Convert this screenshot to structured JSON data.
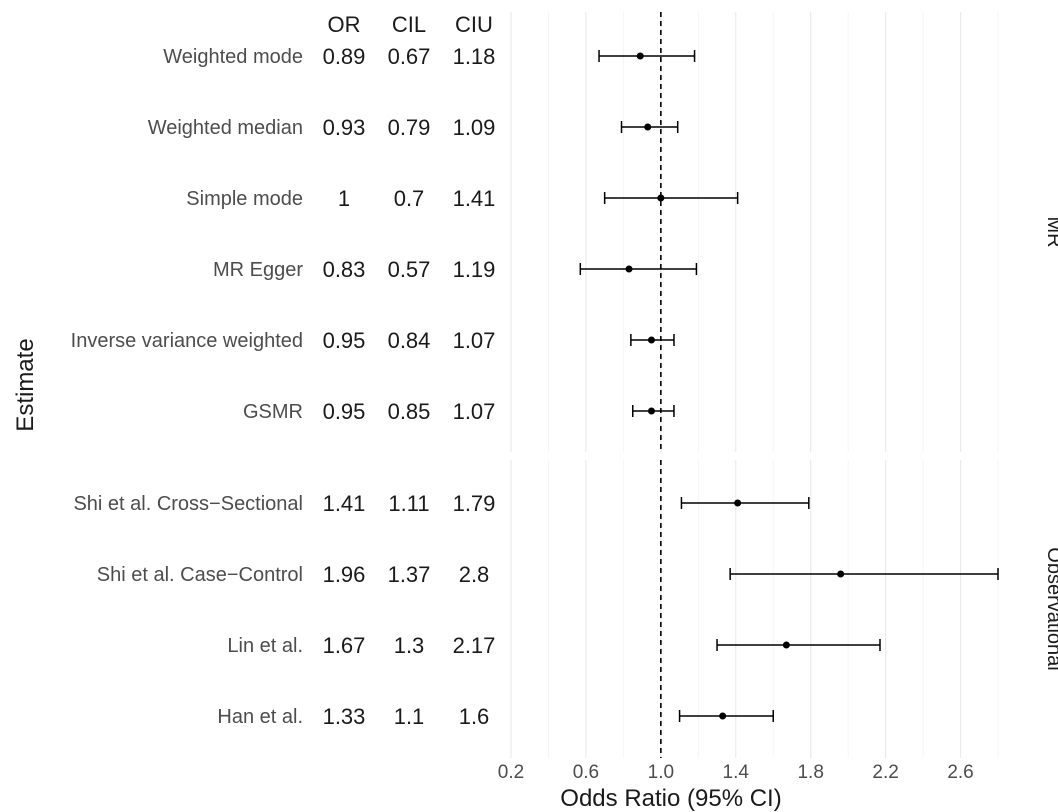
{
  "chart_data": {
    "type": "forest",
    "xlabel": "Odds Ratio (95% CI)",
    "ylabel": "Estimate",
    "xlim": [
      0.2,
      2.8
    ],
    "xticks": [
      "0.2",
      "0.6",
      "1.0",
      "1.4",
      "1.8",
      "2.2",
      "2.6"
    ],
    "reference_line": 1.0,
    "columns": [
      "OR",
      "CIL",
      "CIU"
    ],
    "grid": true,
    "groups": [
      {
        "name": "MR",
        "rows": [
          {
            "label": "Weighted mode",
            "or": 0.89,
            "cil": 0.67,
            "ciu": 1.18,
            "or_text": "0.89",
            "cil_text": "0.67",
            "ciu_text": "1.18"
          },
          {
            "label": "Weighted median",
            "or": 0.93,
            "cil": 0.79,
            "ciu": 1.09,
            "or_text": "0.93",
            "cil_text": "0.79",
            "ciu_text": "1.09"
          },
          {
            "label": "Simple mode",
            "or": 1.0,
            "cil": 0.7,
            "ciu": 1.41,
            "or_text": "1",
            "cil_text": "0.7",
            "ciu_text": "1.41"
          },
          {
            "label": "MR Egger",
            "or": 0.83,
            "cil": 0.57,
            "ciu": 1.19,
            "or_text": "0.83",
            "cil_text": "0.57",
            "ciu_text": "1.19"
          },
          {
            "label": "Inverse variance weighted",
            "or": 0.95,
            "cil": 0.84,
            "ciu": 1.07,
            "or_text": "0.95",
            "cil_text": "0.84",
            "ciu_text": "1.07"
          },
          {
            "label": "GSMR",
            "or": 0.95,
            "cil": 0.85,
            "ciu": 1.07,
            "or_text": "0.95",
            "cil_text": "0.85",
            "ciu_text": "1.07"
          }
        ]
      },
      {
        "name": "Observational",
        "rows": [
          {
            "label": "Shi et al. Cross−Sectional",
            "or": 1.41,
            "cil": 1.11,
            "ciu": 1.79,
            "or_text": "1.41",
            "cil_text": "1.11",
            "ciu_text": "1.79"
          },
          {
            "label": "Shi et al. Case−Control",
            "or": 1.96,
            "cil": 1.37,
            "ciu": 2.8,
            "or_text": "1.96",
            "cil_text": "1.37",
            "ciu_text": "2.8"
          },
          {
            "label": "Lin et al.",
            "or": 1.67,
            "cil": 1.3,
            "ciu": 2.17,
            "or_text": "1.67",
            "cil_text": "1.3",
            "ciu_text": "2.17"
          },
          {
            "label": "Han et al.",
            "or": 1.33,
            "cil": 1.1,
            "ciu": 1.6,
            "or_text": "1.33",
            "cil_text": "1.1",
            "ciu_text": "1.6"
          }
        ]
      }
    ]
  }
}
